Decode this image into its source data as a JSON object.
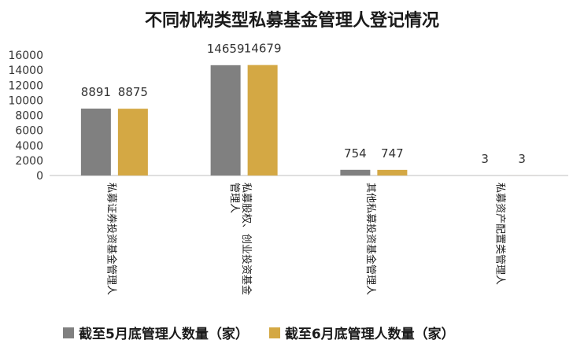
{
  "chart_data": {
    "type": "bar",
    "title": "不同机构类型私募基金管理人登记情况",
    "categories": [
      "私募证券投资基金管理人",
      "私募股权、创业投资基金管理人",
      "其他私募投资基金管理人",
      "私募资产配置类管理人"
    ],
    "series": [
      {
        "name": "截至5月底管理人数量（家）",
        "values": [
          8891,
          14659,
          754,
          3
        ],
        "color": "#808080"
      },
      {
        "name": "截至6月底管理人数量（家）",
        "values": [
          8875,
          14679,
          747,
          3
        ],
        "color": "#d4a844"
      }
    ],
    "y_ticks": [
      "0",
      "2000",
      "4000",
      "6000",
      "8000",
      "10000",
      "12000",
      "14000",
      "16000"
    ],
    "ylim": [
      0,
      16000
    ],
    "grid": false,
    "legend_position": "bottom"
  }
}
